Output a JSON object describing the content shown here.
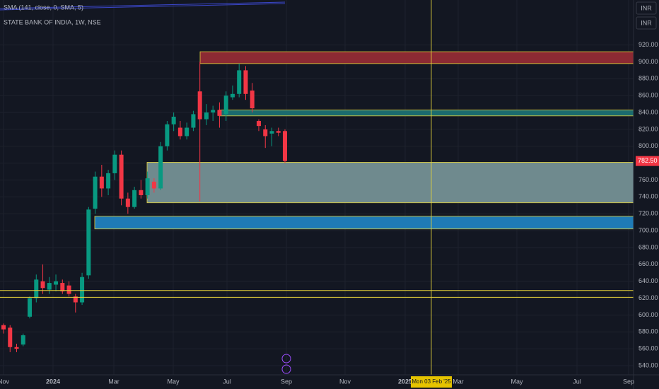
{
  "chart_data": {
    "type": "candlestick",
    "title": "STATE BANK OF INDIA, 1W, NSE",
    "indicator": "SMA (141, close, 0, SMA, 5)",
    "currency": "INR",
    "up_color": "#089981",
    "down_color": "#f23645",
    "open": [
      588,
      585,
      562,
      565,
      598,
      620,
      640,
      630,
      636,
      638,
      635,
      622,
      615,
      647,
      726,
      764,
      750,
      768,
      790,
      738,
      728,
      748,
      742,
      758,
      750,
      800,
      826,
      822,
      812,
      822,
      865,
      832,
      840,
      843,
      838,
      858,
      862,
      890,
      866,
      830,
      820,
      815,
      818,
      818
    ],
    "high": [
      590,
      588,
      566,
      578,
      622,
      648,
      660,
      645,
      648,
      642,
      640,
      625,
      650,
      728,
      770,
      778,
      772,
      795,
      795,
      745,
      752,
      760,
      770,
      762,
      805,
      830,
      840,
      830,
      828,
      842,
      900,
      850,
      848,
      852,
      865,
      872,
      898,
      895,
      875,
      832,
      825,
      822,
      822,
      820
    ],
    "low": [
      578,
      556,
      556,
      563,
      596,
      615,
      625,
      625,
      628,
      625,
      622,
      603,
      612,
      643,
      720,
      740,
      742,
      760,
      730,
      720,
      726,
      738,
      738,
      745,
      748,
      795,
      818,
      808,
      808,
      818,
      735,
      825,
      830,
      822,
      830,
      855,
      858,
      855,
      840,
      818,
      798,
      800,
      812,
      780
    ],
    "close": [
      583,
      562,
      560,
      576,
      620,
      642,
      632,
      638,
      640,
      628,
      625,
      615,
      645,
      725,
      764,
      750,
      768,
      790,
      738,
      728,
      748,
      742,
      762,
      750,
      800,
      826,
      835,
      812,
      822,
      838,
      832,
      840,
      843,
      836,
      860,
      862,
      890,
      862,
      845,
      824,
      812,
      818,
      816,
      782.5
    ],
    "xtick_labels": [
      "Nov",
      "2024",
      "Mar",
      "May",
      "Jul",
      "Sep",
      "Nov",
      "2025",
      "Mar",
      "May",
      "Jul",
      "Sep"
    ],
    "ylim": [
      529.1,
      973.3
    ],
    "yticks": [
      {
        "value": 540,
        "label": "540.00"
      },
      {
        "value": 560,
        "label": "560.00"
      },
      {
        "value": 580,
        "label": "580.00"
      },
      {
        "value": 600,
        "label": "600.00"
      },
      {
        "value": 620,
        "label": "620.00"
      },
      {
        "value": 640,
        "label": "640.00"
      },
      {
        "value": 660,
        "label": "660.00"
      },
      {
        "value": 680,
        "label": "680.00"
      },
      {
        "value": 700,
        "label": "700.00"
      },
      {
        "value": 720,
        "label": "720.00"
      },
      {
        "value": 740,
        "label": "740.00"
      },
      {
        "value": 760,
        "label": "760.00"
      },
      {
        "value": 780,
        "label": "780.00"
      },
      {
        "value": 800,
        "label": "800.00"
      },
      {
        "value": 820,
        "label": "820.00"
      },
      {
        "value": 840,
        "label": "840.00"
      },
      {
        "value": 860,
        "label": "860.00"
      },
      {
        "value": 880,
        "label": "880.00"
      },
      {
        "value": 900,
        "label": "900.00"
      },
      {
        "value": 920,
        "label": "920.00"
      }
    ],
    "last_price": {
      "value": 782.5,
      "label": "782.50"
    },
    "zones": [
      {
        "from": 898,
        "to": 912,
        "color": "#8c2a33"
      },
      {
        "from": 836,
        "to": 843,
        "color": "#1b6b6e"
      },
      {
        "from": 733,
        "to": 781,
        "color": "#6f8a8e"
      },
      {
        "from": 702,
        "to": 717,
        "color": "#1f7bb6"
      }
    ],
    "levels": [
      629,
      621
    ],
    "level_color": "#e6d33a",
    "crosshair_label": "Mon 03 Feb '25",
    "grid": true
  }
}
